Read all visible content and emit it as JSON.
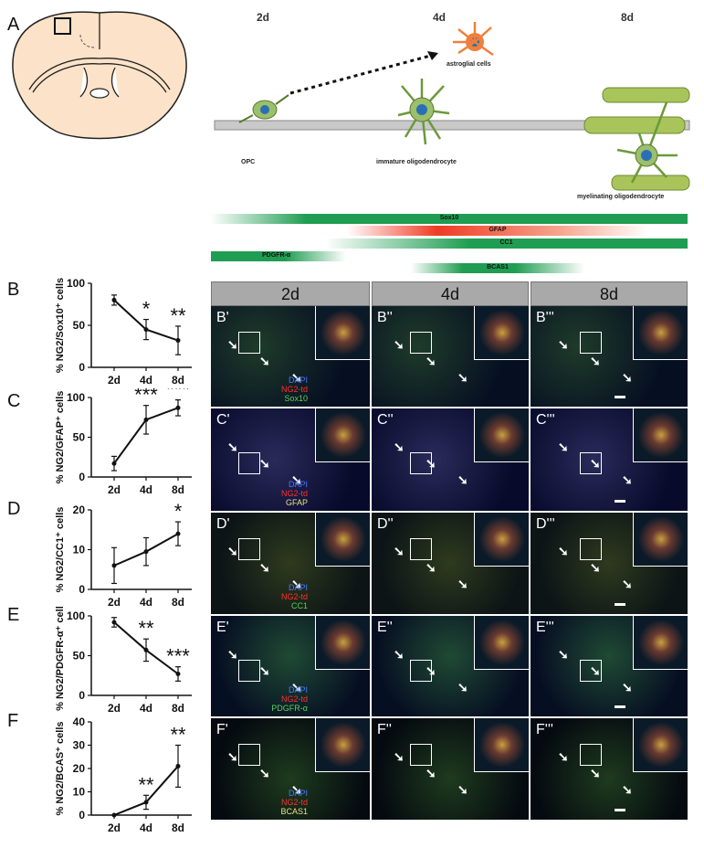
{
  "panel_letters": {
    "A": "A",
    "B": "B",
    "C": "C",
    "D": "D",
    "E": "E",
    "F": "F"
  },
  "schematic": {
    "timepoints": [
      "2d",
      "4d",
      "8d"
    ],
    "cells": {
      "opc": "OPC",
      "immature": "immature oligodendrocyte",
      "myelinating": "myelinating oligodendrocyte",
      "astro": "astroglial cells"
    },
    "markers": [
      "Sox10",
      "GFAP",
      "CC1",
      "PDGFR-α",
      "BCAS1"
    ]
  },
  "column_headers": [
    "2d",
    "4d",
    "8d"
  ],
  "rows": [
    {
      "key": "B",
      "labels": [
        "B'",
        "B''",
        "B'''"
      ],
      "legend": [
        "DAPI",
        "NG2-td",
        "Sox10"
      ],
      "marker_color": "#5bd15b"
    },
    {
      "key": "C",
      "labels": [
        "C'",
        "C''",
        "C'''"
      ],
      "legend": [
        "DAPI",
        "NG2-td",
        "GFAP"
      ],
      "marker_color": "#e8e08a"
    },
    {
      "key": "D",
      "labels": [
        "D'",
        "D''",
        "D'''"
      ],
      "legend": [
        "DAPI",
        "NG2-td",
        "CC1"
      ],
      "marker_color": "#5bd15b"
    },
    {
      "key": "E",
      "labels": [
        "E'",
        "E''",
        "E'''"
      ],
      "legend": [
        "DAPI",
        "NG2-td",
        "PDGFR-α"
      ],
      "marker_color": "#5bd15b"
    },
    {
      "key": "F",
      "labels": [
        "F'",
        "F''",
        "F'''"
      ],
      "legend": [
        "DAPI",
        "NG2-td",
        "BCAS1"
      ],
      "marker_color": "#e8e08a"
    }
  ],
  "chart_data": [
    {
      "type": "line",
      "panel": "B",
      "ylabel": "% NG2/Sox10⁺ cells",
      "categories": [
        "2d",
        "4d",
        "8d"
      ],
      "values": [
        80,
        45,
        32
      ],
      "error": [
        6,
        12,
        17
      ],
      "ylim": [
        0,
        100
      ],
      "yticks": [
        0,
        50,
        100
      ],
      "significance": [
        "",
        "*",
        "**"
      ]
    },
    {
      "type": "line",
      "panel": "C",
      "ylabel": "% NG2/GFAP⁺ cells",
      "categories": [
        "2d",
        "4d",
        "8d"
      ],
      "values": [
        17,
        72,
        87
      ],
      "error": [
        9,
        18,
        10
      ],
      "ylim": [
        0,
        100
      ],
      "yticks": [
        0,
        50,
        100
      ],
      "significance": [
        "",
        "***",
        "***"
      ]
    },
    {
      "type": "line",
      "panel": "D",
      "ylabel": "% NG2/CC1⁺ cells",
      "categories": [
        "2d",
        "4d",
        "8d"
      ],
      "values": [
        6,
        9.5,
        14
      ],
      "error": [
        4.5,
        3.5,
        3
      ],
      "ylim": [
        0,
        20
      ],
      "yticks": [
        0,
        10,
        20
      ],
      "significance": [
        "",
        "",
        "*"
      ]
    },
    {
      "type": "line",
      "panel": "E",
      "ylabel": "% NG2/PDGFR-α⁺ cells",
      "categories": [
        "2d",
        "4d",
        "8d"
      ],
      "values": [
        92,
        57,
        27
      ],
      "error": [
        6,
        14,
        9
      ],
      "ylim": [
        0,
        100
      ],
      "yticks": [
        0,
        50,
        100
      ],
      "significance": [
        "",
        "**",
        "***"
      ]
    },
    {
      "type": "line",
      "panel": "F",
      "ylabel": "% NG2/BCAS⁺ cells",
      "categories": [
        "2d",
        "4d",
        "8d"
      ],
      "values": [
        0,
        5.5,
        21
      ],
      "error": [
        0,
        3,
        9
      ],
      "ylim": [
        0,
        40
      ],
      "yticks": [
        0,
        10,
        20,
        30,
        40
      ],
      "significance": [
        "",
        "**",
        "**"
      ]
    }
  ]
}
